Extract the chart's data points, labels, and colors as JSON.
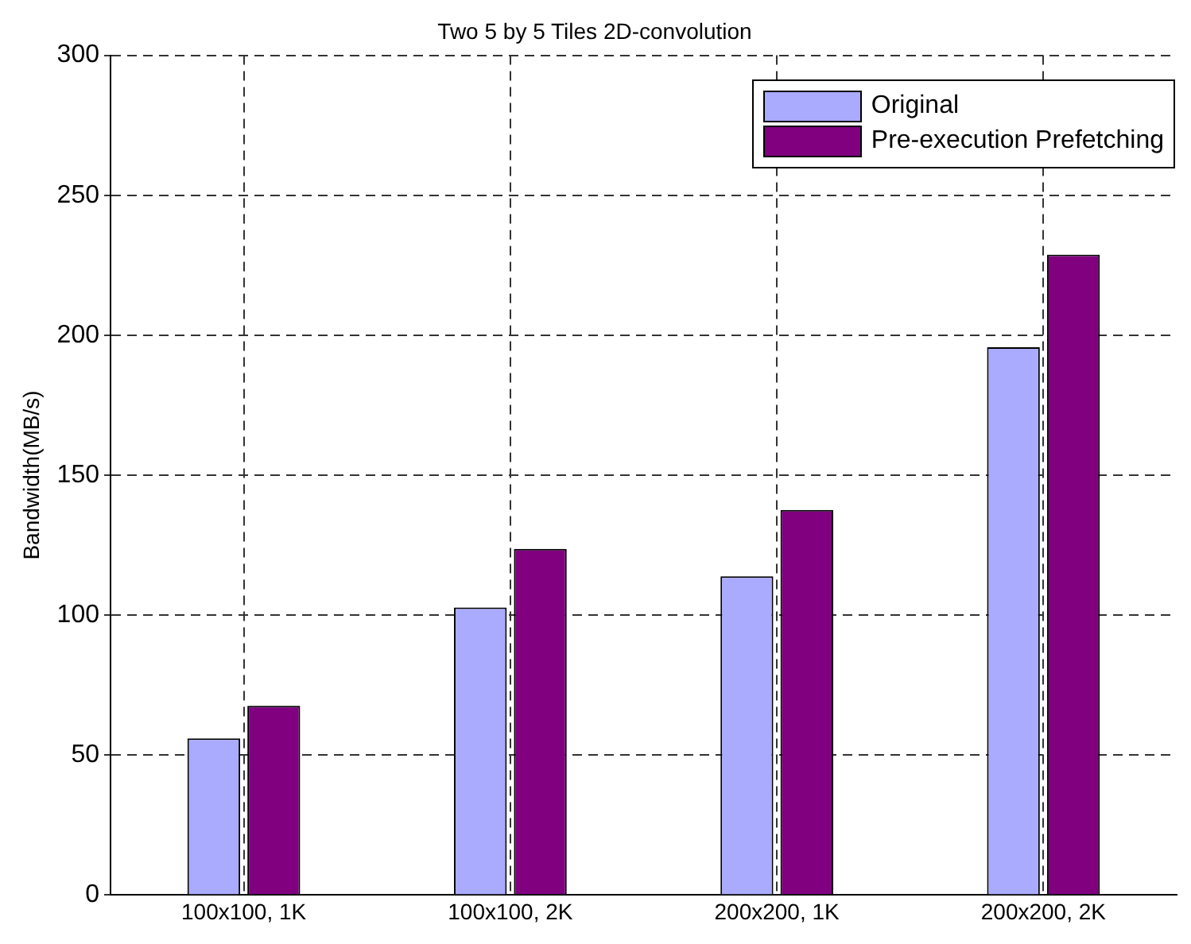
{
  "chart_data": {
    "type": "bar",
    "title": "Two 5 by 5 Tiles 2D-convolution",
    "ylabel": "Bandwidth(MB/s)",
    "categories": [
      "100x100, 1K",
      "100x100, 2K",
      "200x200, 1K",
      "200x200, 2K"
    ],
    "series": [
      {
        "name": "Original",
        "color": "#aaaaff",
        "values": [
          56,
          102.7,
          113.9,
          195.7
        ]
      },
      {
        "name": "Pre-execution Prefetching",
        "color": "#800080",
        "values": [
          67.6,
          123.7,
          137.6,
          228.8
        ]
      }
    ],
    "ylim": [
      0,
      300
    ],
    "yticks": [
      0,
      50,
      100,
      150,
      200,
      250,
      300
    ],
    "grid": true,
    "legend": "top right"
  }
}
